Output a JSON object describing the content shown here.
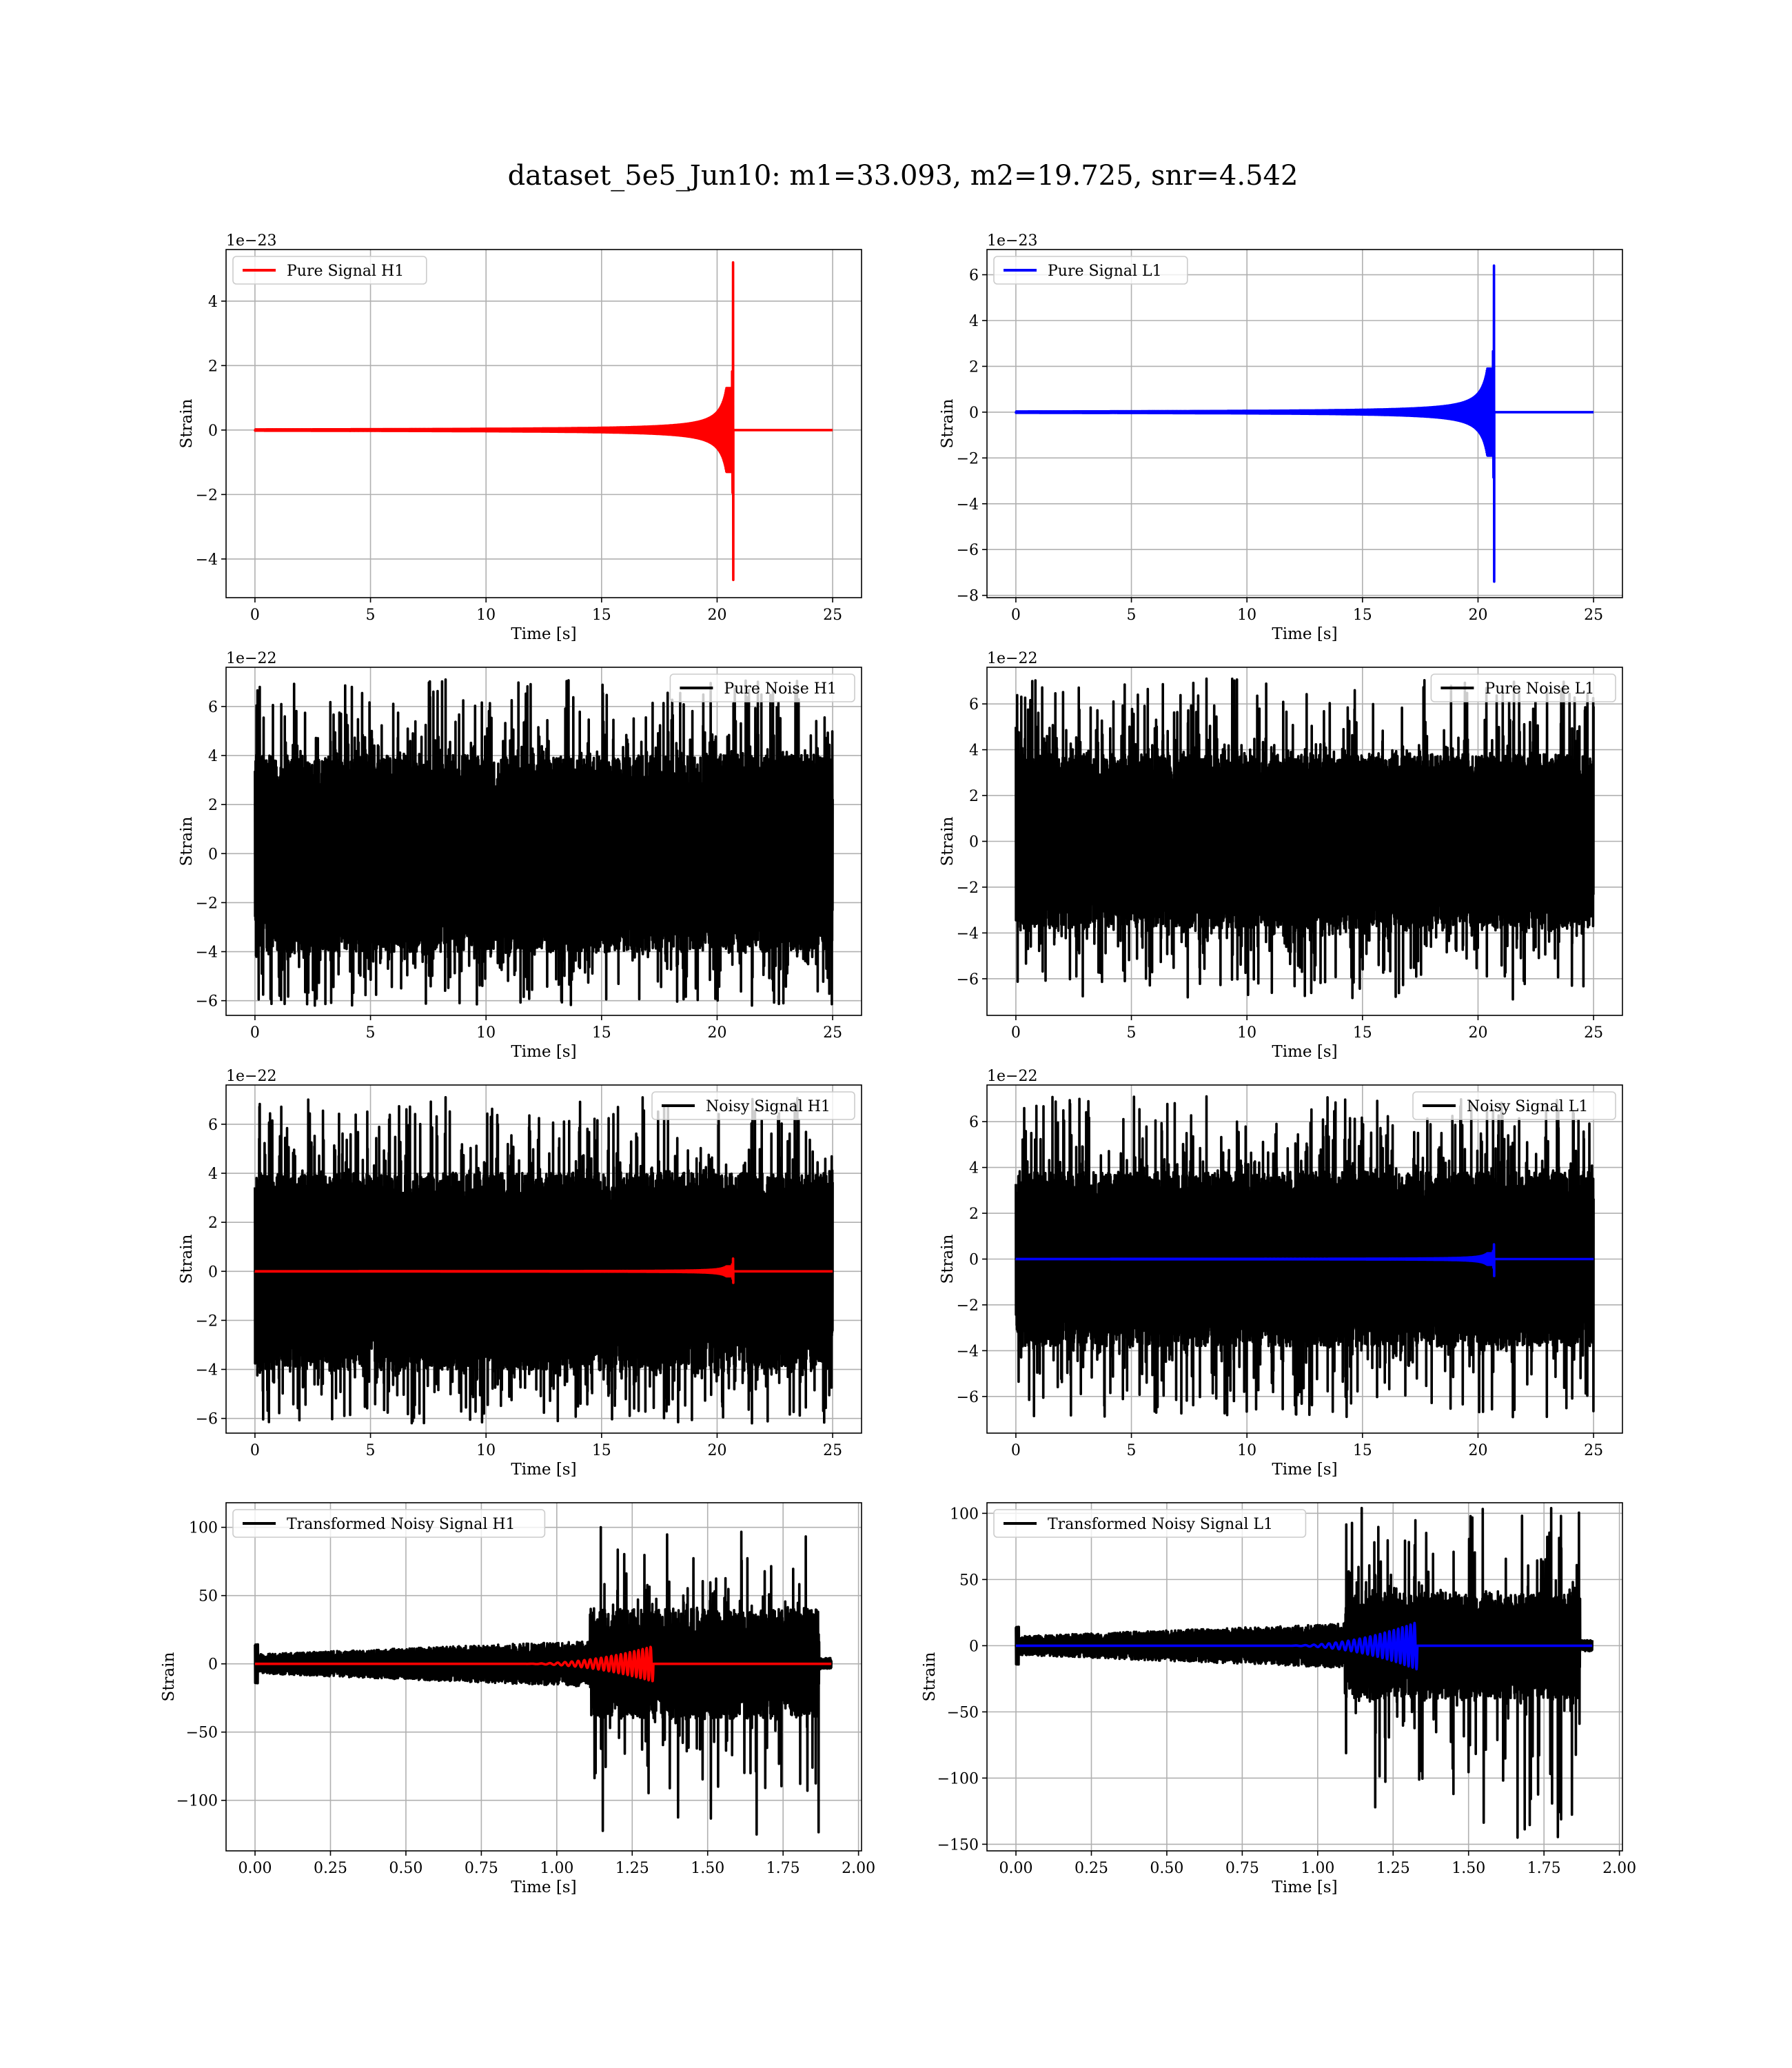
{
  "figure": {
    "title": "dataset_5e5_Jun10: m1=33.093, m2=19.725, snr=4.542"
  },
  "colors": {
    "h1": "#ff0000",
    "l1": "#0000ff",
    "noise": "#000000"
  },
  "chart_data": [
    {
      "id": "pure-signal-h1",
      "type": "line",
      "xlabel": "Time [s]",
      "ylabel": "Strain",
      "offset_text": "1e−23",
      "xlim": [
        -1.25,
        26.25
      ],
      "ylim": [
        -5.2,
        5.6
      ],
      "xticks": [
        0,
        5,
        10,
        15,
        20,
        25
      ],
      "xtick_labels": [
        "0",
        "5",
        "10",
        "15",
        "20",
        "25"
      ],
      "yticks": [
        -4,
        -2,
        0,
        2,
        4
      ],
      "ytick_labels": [
        "−4",
        "−2",
        "0",
        "2",
        "4"
      ],
      "legend": "upper left",
      "series": [
        {
          "name": "Pure Signal H1",
          "kind": "chirp",
          "color": "#ff0000",
          "t_start": 0,
          "t_end": 25,
          "t_merge": 20.7,
          "peak_pos": 5.2,
          "peak_neg": -4.65,
          "inspiral_amp": 1.3
        }
      ]
    },
    {
      "id": "pure-signal-l1",
      "type": "line",
      "xlabel": "Time [s]",
      "ylabel": "Strain",
      "offset_text": "1e−23",
      "xlim": [
        -1.25,
        26.25
      ],
      "ylim": [
        -8.1,
        7.1
      ],
      "xticks": [
        0,
        5,
        10,
        15,
        20,
        25
      ],
      "xtick_labels": [
        "0",
        "5",
        "10",
        "15",
        "20",
        "25"
      ],
      "yticks": [
        -8,
        -6,
        -4,
        -2,
        0,
        2,
        4,
        6
      ],
      "ytick_labels": [
        "−8",
        "−6",
        "−4",
        "−2",
        "0",
        "2",
        "4",
        "6"
      ],
      "legend": "upper left",
      "series": [
        {
          "name": "Pure Signal L1",
          "kind": "chirp",
          "color": "#0000ff",
          "t_start": 0,
          "t_end": 25,
          "t_merge": 20.7,
          "peak_pos": 6.4,
          "peak_neg": -7.4,
          "inspiral_amp": 1.9
        }
      ]
    },
    {
      "id": "pure-noise-h1",
      "type": "line",
      "xlabel": "Time [s]",
      "ylabel": "Strain",
      "offset_text": "1e−22",
      "xlim": [
        -1.25,
        26.25
      ],
      "ylim": [
        -6.6,
        7.6
      ],
      "xticks": [
        0,
        5,
        10,
        15,
        20,
        25
      ],
      "xtick_labels": [
        "0",
        "5",
        "10",
        "15",
        "20",
        "25"
      ],
      "yticks": [
        -6,
        -4,
        -2,
        0,
        2,
        4,
        6
      ],
      "ytick_labels": [
        "−6",
        "−4",
        "−2",
        "0",
        "2",
        "4",
        "6"
      ],
      "legend": "upper right",
      "series": [
        {
          "name": "Pure Noise H1",
          "kind": "noise",
          "color": "#000000",
          "t_start": 0,
          "t_end": 25,
          "core": 4.0,
          "max": 7.1,
          "min": -6.2
        }
      ]
    },
    {
      "id": "pure-noise-l1",
      "type": "line",
      "xlabel": "Time [s]",
      "ylabel": "Strain",
      "offset_text": "1e−22",
      "xlim": [
        -1.25,
        26.25
      ],
      "ylim": [
        -7.6,
        7.6
      ],
      "xticks": [
        0,
        5,
        10,
        15,
        20,
        25
      ],
      "xtick_labels": [
        "0",
        "5",
        "10",
        "15",
        "20",
        "25"
      ],
      "yticks": [
        -6,
        -4,
        -2,
        0,
        2,
        4,
        6
      ],
      "ytick_labels": [
        "−6",
        "−4",
        "−2",
        "0",
        "2",
        "4",
        "6"
      ],
      "legend": "upper right",
      "series": [
        {
          "name": "Pure Noise L1",
          "kind": "noise",
          "color": "#000000",
          "t_start": 0,
          "t_end": 25,
          "core": 3.8,
          "max": 7.1,
          "min": -6.9
        }
      ]
    },
    {
      "id": "noisy-signal-h1",
      "type": "line",
      "xlabel": "Time [s]",
      "ylabel": "Strain",
      "offset_text": "1e−22",
      "xlim": [
        -1.25,
        26.25
      ],
      "ylim": [
        -6.6,
        7.6
      ],
      "xticks": [
        0,
        5,
        10,
        15,
        20,
        25
      ],
      "xtick_labels": [
        "0",
        "5",
        "10",
        "15",
        "20",
        "25"
      ],
      "yticks": [
        -6,
        -4,
        -2,
        0,
        2,
        4,
        6
      ],
      "ytick_labels": [
        "−6",
        "−4",
        "−2",
        "0",
        "2",
        "4",
        "6"
      ],
      "legend": "upper right",
      "series": [
        {
          "name": "Noisy Signal H1",
          "kind": "noise",
          "color": "#000000",
          "t_start": 0,
          "t_end": 25,
          "core": 4.0,
          "max": 7.1,
          "min": -6.2
        },
        {
          "kind": "chirp",
          "color": "#ff0000",
          "t_start": 0,
          "t_end": 25,
          "t_merge": 20.7,
          "peak_pos": 0.52,
          "peak_neg": -0.47,
          "inspiral_amp": 0.2
        }
      ]
    },
    {
      "id": "noisy-signal-l1",
      "type": "line",
      "xlabel": "Time [s]",
      "ylabel": "Strain",
      "offset_text": "1e−22",
      "xlim": [
        -1.25,
        26.25
      ],
      "ylim": [
        -7.6,
        7.6
      ],
      "xticks": [
        0,
        5,
        10,
        15,
        20,
        25
      ],
      "xtick_labels": [
        "0",
        "5",
        "10",
        "15",
        "20",
        "25"
      ],
      "yticks": [
        -6,
        -4,
        -2,
        0,
        2,
        4,
        6
      ],
      "ytick_labels": [
        "−6",
        "−4",
        "−2",
        "0",
        "2",
        "4",
        "6"
      ],
      "legend": "upper right",
      "series": [
        {
          "name": "Noisy Signal L1",
          "kind": "noise",
          "color": "#000000",
          "t_start": 0,
          "t_end": 25,
          "core": 3.8,
          "max": 7.1,
          "min": -6.9
        },
        {
          "kind": "chirp",
          "color": "#0000ff",
          "t_start": 0,
          "t_end": 25,
          "t_merge": 20.7,
          "peak_pos": 0.64,
          "peak_neg": -0.74,
          "inspiral_amp": 0.25
        }
      ]
    },
    {
      "id": "transformed-noisy-signal-h1",
      "type": "line",
      "xlabel": "Time [s]",
      "ylabel": "Strain",
      "offset_text": "",
      "xlim": [
        -0.096,
        2.01
      ],
      "ylim": [
        -137,
        118
      ],
      "xticks": [
        0,
        0.25,
        0.5,
        0.75,
        1.0,
        1.25,
        1.5,
        1.75,
        2.0
      ],
      "xtick_labels": [
        "0.00",
        "0.25",
        "0.50",
        "0.75",
        "1.00",
        "1.25",
        "1.50",
        "1.75",
        "2.00"
      ],
      "yticks": [
        -100,
        -50,
        0,
        50,
        100
      ],
      "ytick_labels": [
        "−100",
        "−50",
        "0",
        "50",
        "100"
      ],
      "legend": "upper left",
      "series": [
        {
          "name": "Transformed Noisy Signal H1",
          "kind": "transformed-noise",
          "color": "#000000",
          "t_start": 0,
          "t_end": 1.91,
          "t_jump": 1.11,
          "t_drop": 1.87,
          "low_amp": 7,
          "high_amp": 40,
          "max": 100,
          "min": -125
        },
        {
          "kind": "transformed-chirp",
          "color": "#ff0000",
          "t_start": 0,
          "t_end": 1.91,
          "t_merge": 1.32,
          "peak": 13
        }
      ]
    },
    {
      "id": "transformed-noisy-signal-l1",
      "type": "line",
      "xlabel": "Time [s]",
      "ylabel": "Strain",
      "offset_text": "",
      "xlim": [
        -0.096,
        2.01
      ],
      "ylim": [
        -155,
        108
      ],
      "xticks": [
        0,
        0.25,
        0.5,
        0.75,
        1.0,
        1.25,
        1.5,
        1.75,
        2.0
      ],
      "xtick_labels": [
        "0.00",
        "0.25",
        "0.50",
        "0.75",
        "1.00",
        "1.25",
        "1.50",
        "1.75",
        "2.00"
      ],
      "yticks": [
        -150,
        -100,
        -50,
        0,
        50,
        100
      ],
      "ytick_labels": [
        "−150",
        "−100",
        "−50",
        "0",
        "50",
        "100"
      ],
      "legend": "upper left",
      "series": [
        {
          "name": "Transformed Noisy Signal L1",
          "kind": "transformed-noise",
          "color": "#000000",
          "t_start": 0,
          "t_end": 1.91,
          "t_jump": 1.09,
          "t_drop": 1.87,
          "low_amp": 7,
          "high_amp": 40,
          "max": 104,
          "min": -145
        },
        {
          "kind": "transformed-chirp",
          "color": "#0000ff",
          "t_start": 0,
          "t_end": 1.91,
          "t_merge": 1.33,
          "peak": 18
        }
      ]
    }
  ]
}
